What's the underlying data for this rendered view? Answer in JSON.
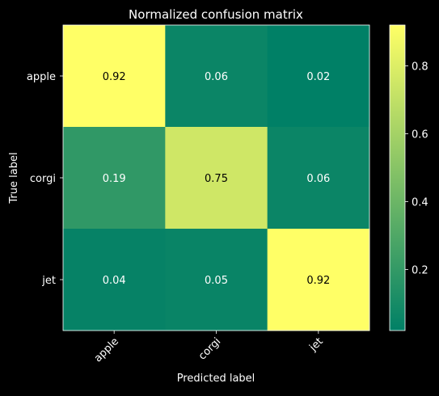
{
  "chart_data": {
    "type": "heatmap",
    "title": "Normalized confusion matrix",
    "xlabel": "Predicted label",
    "ylabel": "True label",
    "x_categories": [
      "apple",
      "corgi",
      "jet"
    ],
    "y_categories": [
      "apple",
      "corgi",
      "jet"
    ],
    "values": [
      [
        0.92,
        0.06,
        0.02
      ],
      [
        0.19,
        0.75,
        0.06
      ],
      [
        0.04,
        0.05,
        0.92
      ]
    ],
    "cell_labels": [
      [
        "0.92",
        "0.06",
        "0.02"
      ],
      [
        "0.19",
        "0.75",
        "0.06"
      ],
      [
        "0.04",
        "0.05",
        "0.92"
      ]
    ],
    "colormap": "summer",
    "colormap_range": [
      0.02,
      0.92
    ],
    "colorbar": {
      "ticks": [
        0.2,
        0.4,
        0.6,
        0.8
      ],
      "tick_labels": [
        "0.2",
        "0.4",
        "0.6",
        "0.8"
      ]
    },
    "x_tick_rotation_deg": 45,
    "background_color": "#000000",
    "text_color": "#ffffff",
    "light_cell_text_color": "#000000",
    "grid": false
  }
}
